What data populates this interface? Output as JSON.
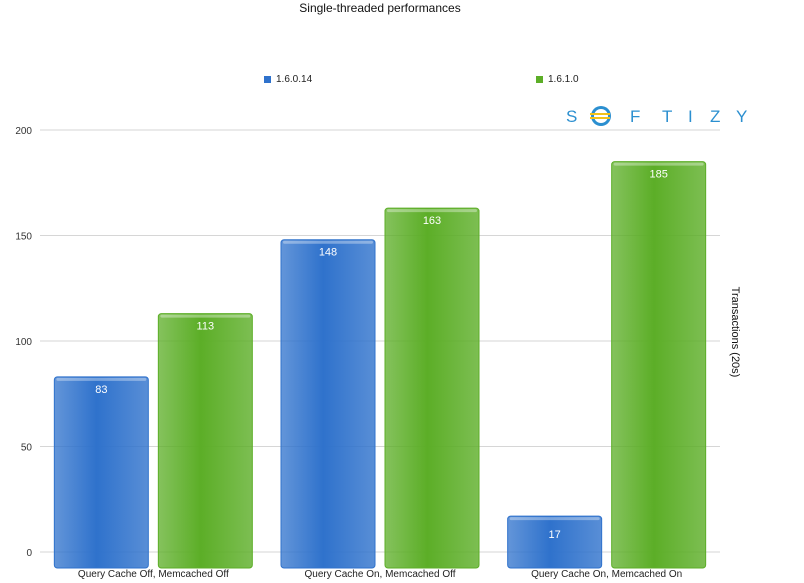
{
  "chart_data": {
    "type": "bar",
    "title": "Single-threaded performances",
    "ylabel": "Transactions (20s)",
    "xlabel": "",
    "categories": [
      "Query Cache Off, Memcached Off",
      "Query Cache On, Memcached Off",
      "Query Cache On, Memcached On"
    ],
    "series": [
      {
        "name": "1.6.0.14",
        "values": [
          83,
          148,
          17
        ],
        "color": "#2f72cc"
      },
      {
        "name": "1.6.1.0",
        "values": [
          113,
          163,
          185
        ],
        "color": "#5cae27"
      }
    ],
    "ylim": [
      0,
      200
    ],
    "yticks": [
      "0",
      "50",
      "100",
      "150",
      "200"
    ],
    "grid": true,
    "legend_position": "top"
  },
  "logo": {
    "text": "SOFTIZY",
    "color": "#2b8fd0",
    "accent": "#f3c218"
  }
}
